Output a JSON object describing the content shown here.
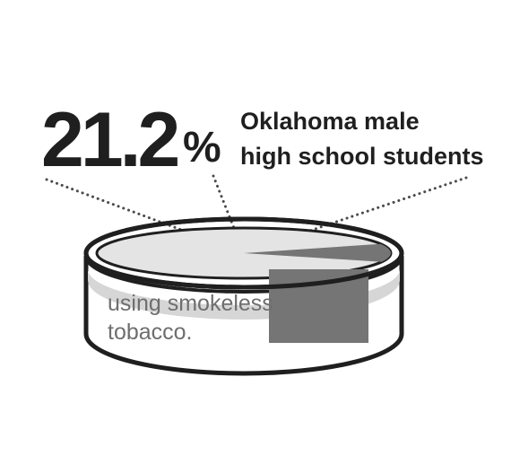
{
  "chart_data": {
    "type": "pie",
    "value": 21.2,
    "value_text": "21.2",
    "unit": "%",
    "subject_lines": [
      "Oklahoma male",
      "high school students"
    ],
    "caption_lines": [
      "using smokeless",
      "tobacco."
    ]
  },
  "colors": {
    "ink": "#1f1f1f",
    "highlight": "#757575",
    "band": "#d6d6d6",
    "caption": "#6e6e6e"
  }
}
